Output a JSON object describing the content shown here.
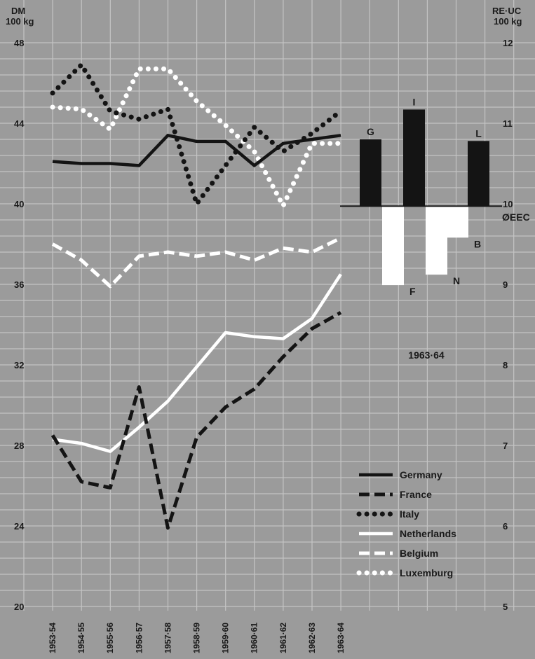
{
  "colors": {
    "background": "#9b9b9b",
    "grid": "#c4c4c4",
    "text": "#1a1a1a",
    "black": "#141414",
    "white": "#ffffff"
  },
  "axes": {
    "left_unit_line1": "DM",
    "left_unit_line2": "100 kg",
    "right_unit_line1": "RE·UC",
    "right_unit_line2": "100 kg"
  },
  "chart_data": [
    {
      "type": "line",
      "x": [
        "1953·54",
        "1954·55",
        "1955·56",
        "1956·57",
        "1957·58",
        "1958·59",
        "1959·60",
        "1960·61",
        "1961·62",
        "1962·63",
        "1963·64"
      ],
      "y_left_ticks": [
        "20",
        "24",
        "28",
        "32",
        "36",
        "40",
        "44",
        "48"
      ],
      "y_right_ticks": [
        "5",
        "6",
        "7",
        "8",
        "9",
        "10",
        "11",
        "12"
      ],
      "ylim_left": [
        20,
        48
      ],
      "ylim_right": [
        5,
        12
      ],
      "grid": true,
      "legend_position": "bottom-right",
      "series": [
        {
          "name": "Germany",
          "style": "solid",
          "color": "#141414",
          "values": [
            42.1,
            42.0,
            42.0,
            41.9,
            43.4,
            43.1,
            43.1,
            41.9,
            43.0,
            43.2,
            43.4
          ]
        },
        {
          "name": "France",
          "style": "dashed",
          "color": "#141414",
          "values": [
            28.5,
            26.2,
            25.9,
            30.9,
            23.9,
            28.4,
            29.9,
            30.8,
            32.4,
            33.8,
            34.6
          ]
        },
        {
          "name": "Italy",
          "style": "dotted",
          "color": "#141414",
          "values": [
            45.5,
            46.9,
            44.6,
            44.2,
            44.7,
            40.0,
            41.9,
            43.8,
            42.6,
            43.5,
            44.6
          ]
        },
        {
          "name": "Netherlands",
          "style": "solid",
          "color": "#ffffff",
          "values": [
            28.3,
            28.1,
            27.7,
            28.9,
            30.2,
            31.9,
            33.6,
            33.4,
            33.3,
            34.3,
            36.5
          ]
        },
        {
          "name": "Belgium",
          "style": "dashed",
          "color": "#ffffff",
          "values": [
            38.0,
            37.2,
            35.9,
            37.4,
            37.6,
            37.4,
            37.6,
            37.2,
            37.8,
            37.6,
            38.3
          ]
        },
        {
          "name": "Luxemburg",
          "style": "dotted",
          "color": "#ffffff",
          "values": [
            44.8,
            44.7,
            43.7,
            46.7,
            46.7,
            45.1,
            43.9,
            42.6,
            39.9,
            43.0,
            43.0
          ]
        }
      ]
    },
    {
      "type": "bar",
      "title": "1963·64",
      "baseline_label": "ØEEC",
      "categories": [
        "G",
        "F",
        "I",
        "N",
        "B",
        "L"
      ],
      "values": [
        10.8,
        8.99,
        11.17,
        9.12,
        9.58,
        10.78
      ],
      "colors": [
        "#141414",
        "#ffffff",
        "#141414",
        "#ffffff",
        "#ffffff",
        "#141414"
      ],
      "baseline_value": 9.97,
      "axis_scale": "right"
    }
  ]
}
